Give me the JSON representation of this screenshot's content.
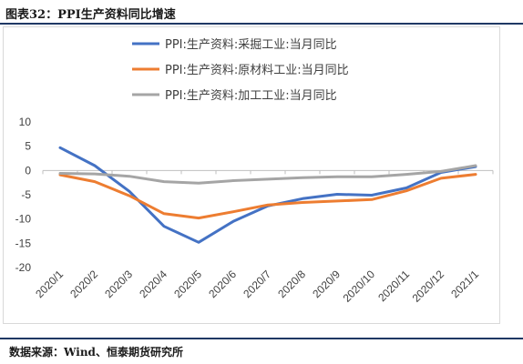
{
  "figure": {
    "title": "图表32：PPI生产资料同比增速",
    "source": "数据来源：Wind、恒泰期货研究所"
  },
  "colors": {
    "series1": "#4472c4",
    "series2": "#ed7d31",
    "series3": "#a5a5a5",
    "grid": "#d9d9d9",
    "rule": "#1f3864"
  },
  "chart_data": {
    "type": "line",
    "x": [
      "2020/1",
      "2020/2",
      "2020/3",
      "2020/4",
      "2020/5",
      "2020/6",
      "2020/7",
      "2020/8",
      "2020/9",
      "2020/10",
      "2020/11",
      "2020/12",
      "2021/1"
    ],
    "series": [
      {
        "name": "PPI:生产资料:采掘工业:当月同比",
        "color": "#4472c4",
        "values": [
          4.7,
          1.0,
          -4.3,
          -11.5,
          -14.8,
          -10.5,
          -7.3,
          -5.8,
          -4.9,
          -5.1,
          -3.6,
          -0.4,
          0.8
        ]
      },
      {
        "name": "PPI:生产资料:原材料工业:当月同比",
        "color": "#ed7d31",
        "values": [
          -0.9,
          -2.3,
          -5.2,
          -8.9,
          -9.8,
          -8.5,
          -7.1,
          -6.6,
          -6.3,
          -6.0,
          -4.2,
          -1.6,
          -0.8
        ]
      },
      {
        "name": "PPI:生产资料:加工工业:当月同比",
        "color": "#a5a5a5",
        "values": [
          -0.6,
          -0.7,
          -1.2,
          -2.3,
          -2.6,
          -2.1,
          -1.8,
          -1.5,
          -1.3,
          -1.3,
          -0.8,
          -0.2,
          1.0
        ]
      }
    ],
    "ylim": [
      -20,
      10
    ],
    "yticks": [
      10,
      5,
      0,
      -5,
      -10,
      -15,
      -20
    ],
    "grid": false,
    "legend": "top-center"
  }
}
